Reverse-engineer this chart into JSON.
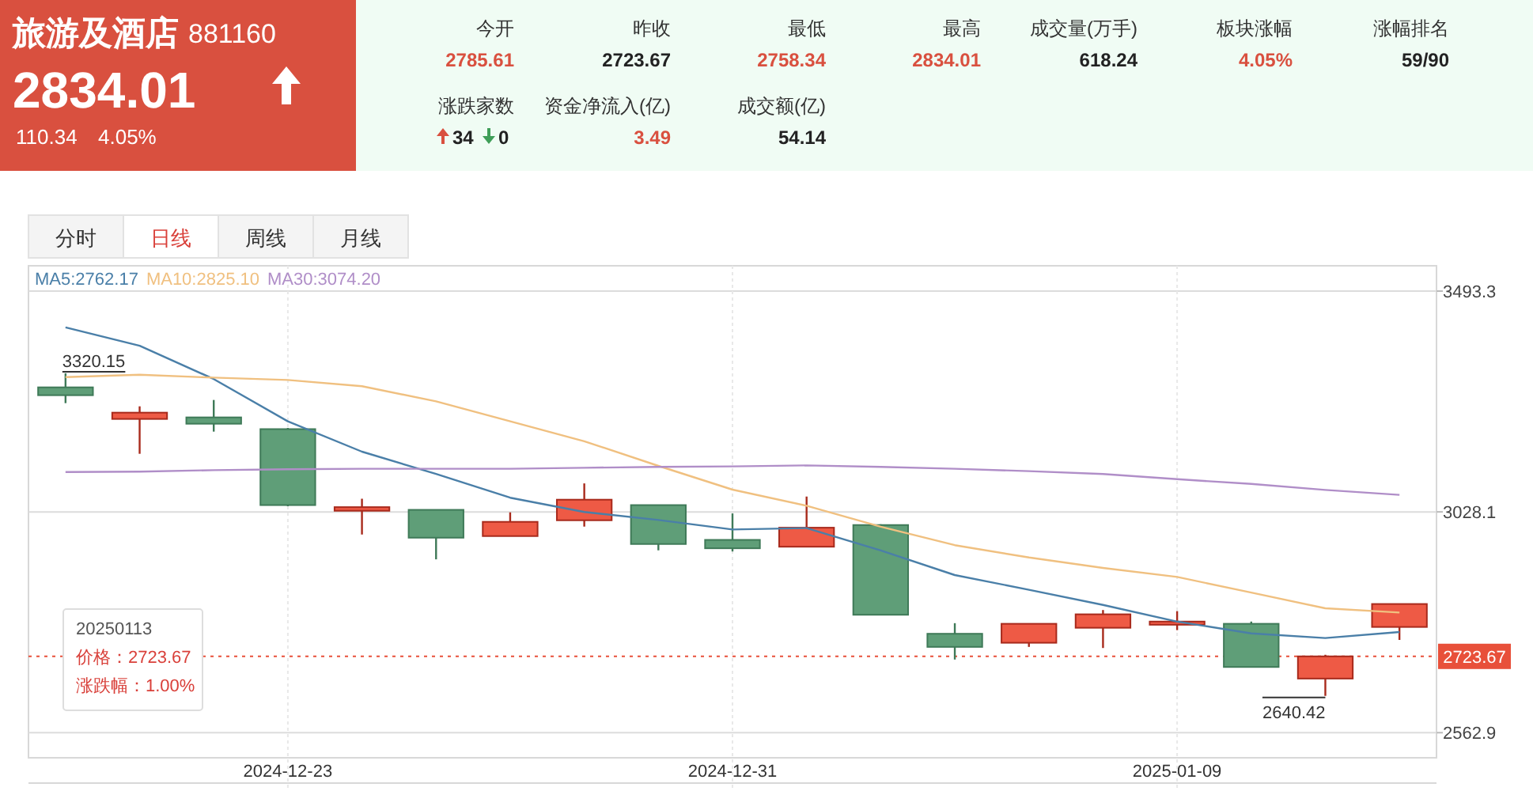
{
  "chart_data": [
    {
      "type": "other",
      "title": "旅游及酒店",
      "subtitle": "881160",
      "annotations": [
        "2834.01",
        "110.34",
        "4.05%",
        "今开",
        "2785.61",
        "昨收",
        "2723.67",
        "最低",
        "2758.34",
        "最高",
        "2834.01",
        "成交量(万手)",
        "618.24",
        "板块涨幅",
        "4.05%",
        "涨幅排名",
        "59/90",
        "涨跌家数",
        "34",
        "0",
        "资金净流入(亿)",
        "3.49",
        "成交额(亿)",
        "54.14"
      ]
    },
    {
      "type": "candlestick",
      "categories": [
        null,
        null,
        null,
        "2024-12-23",
        null,
        null,
        null,
        null,
        null,
        "2024-12-31",
        null,
        null,
        null,
        null,
        null,
        "2025-01-09",
        null,
        null,
        null
      ],
      "ohlc": [
        [
          3290.5,
          3320.15,
          3257.2,
          3273.9
        ],
        [
          3223.9,
          3250.5,
          3150.5,
          3237.2
        ],
        [
          3227.2,
          3263.9,
          3197.2,
          3213.8
        ],
        [
          3202.5,
          3205,
          3040,
          3042.4
        ],
        [
          3030.4,
          3055.8,
          2980.4,
          3038.1
        ],
        [
          3032.4,
          3032.4,
          2928.1,
          2973.7
        ],
        [
          2977.1,
          3027.1,
          2977.1,
          3007.1
        ],
        [
          3010.4,
          3088.1,
          2997.1,
          3053.8
        ],
        [
          3042.4,
          3042.4,
          2947.1,
          2960.4
        ],
        [
          2969.1,
          3024.8,
          2944.7,
          2951.4
        ],
        [
          2954.7,
          3060.4,
          2954.7,
          2994.8
        ],
        [
          3000.4,
          3002,
          2811.3,
          2811.3
        ],
        [
          2771.3,
          2793.6,
          2717,
          2743.6
        ],
        [
          2752.3,
          2792.3,
          2743.6,
          2792.3
        ],
        [
          2783.9,
          2821.3,
          2741.3,
          2812.3
        ],
        [
          2790.3,
          2819,
          2779,
          2797
        ],
        [
          2792.3,
          2797,
          2701.3,
          2701.3
        ],
        [
          2676.9,
          2727,
          2640.42,
          2723.67
        ],
        [
          2785.61,
          2834.01,
          2758.34,
          2834.01
        ]
      ],
      "series": [
        {
          "name": "MA5:2762.17",
          "type": "line",
          "color": "#4a7fa8",
          "values": [
            3417,
            3378,
            3308,
            3219,
            3155,
            3108,
            3058,
            3028,
            3011,
            2991,
            2994,
            2947,
            2895,
            2864,
            2832,
            2797,
            2772,
            2762.17,
            2775
          ]
        },
        {
          "name": "MA10:2825.10",
          "type": "line",
          "color": "#f0c080",
          "values": [
            3312,
            3317,
            3311,
            3306,
            3293,
            3261,
            3219,
            3177,
            3125,
            3075,
            3041,
            2997,
            2958,
            2932,
            2910,
            2891,
            2858,
            2825.1,
            2816
          ]
        },
        {
          "name": "MA30:3074.20",
          "type": "line",
          "color": "#b08ec8",
          "values": [
            3112,
            3113,
            3116,
            3118,
            3119,
            3119,
            3119,
            3121,
            3123,
            3124,
            3126,
            3123,
            3119,
            3114,
            3108,
            3097,
            3087,
            3074.2,
            3064
          ]
        }
      ],
      "ylim": [
        2510,
        3493.3
      ],
      "yticks": [
        2562.9,
        3028.1,
        3493.3
      ],
      "grid": true,
      "legend": "top left",
      "ref_lines": [
        {
          "axis": "y",
          "value": 2723.67,
          "label": "2723.67",
          "color": "#e8503a",
          "line_style": "dotted"
        }
      ],
      "annotations": [
        "分时",
        "日线",
        "周线",
        "月线",
        "20250113",
        "价格：2723.67",
        "涨跌幅：1.00%",
        {
          "text": "3320.15",
          "y": 3320.15
        },
        "2640.42"
      ]
    }
  ]
}
